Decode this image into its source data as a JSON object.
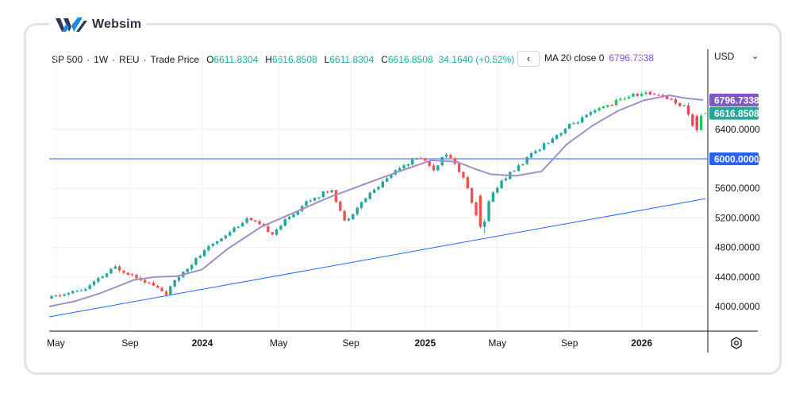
{
  "brand": {
    "name": "Websim"
  },
  "legend": {
    "symbol": "SP 500",
    "interval": "1W",
    "source": "REU",
    "price_type": "Trade Price",
    "o_key": "O",
    "o_val": "6611.8304",
    "h_key": "H",
    "h_val": "6616.8508",
    "l_key": "L",
    "l_val": "6611.8304",
    "c_key": "C",
    "c_val": "6616.8508",
    "change": "34.1640 (+0.52%)"
  },
  "indicator": {
    "label": "MA 20 close 0",
    "value": "6796.7338"
  },
  "controls": {
    "collapse": "‹",
    "currency": "USD"
  },
  "colors": {
    "up": "#26a69a",
    "up_bright": "#22c55e",
    "down": "#ef5350",
    "down_bright": "#e8435f",
    "ma": "#a28fc4",
    "trend": "#2962ff",
    "level": "#2962ff",
    "tag_ma": "#7e57c2",
    "tag_price": "#26a69a",
    "tag_level": "#2962ff"
  },
  "chart_data": {
    "type": "candlestick",
    "title": "SP 500 · 1W · REU",
    "ylim": [
      3720,
      7560
    ],
    "y_ticks": [
      4000,
      4400,
      4800,
      5200,
      5600,
      6000,
      6400
    ],
    "y_tick_labels": [
      "4000.0000",
      "4400.0000",
      "4800.0000",
      "5200.0000",
      "5600.0000",
      "6000.0000",
      "6400.0000"
    ],
    "x_ticks": [
      {
        "label": "May",
        "t": 1,
        "major": false
      },
      {
        "label": "Sep",
        "t": 18.5,
        "major": false
      },
      {
        "label": "2024",
        "t": 35.5,
        "major": true
      },
      {
        "label": "May",
        "t": 53.5,
        "major": false
      },
      {
        "label": "Sep",
        "t": 70.5,
        "major": false
      },
      {
        "label": "2025",
        "t": 88,
        "major": true
      },
      {
        "label": "May",
        "t": 105,
        "major": false
      },
      {
        "label": "Sep",
        "t": 122,
        "major": false
      },
      {
        "label": "2026",
        "t": 139,
        "major": true
      }
    ],
    "x_count": 155,
    "anchors": [
      [
        0,
        4120
      ],
      [
        8,
        4240
      ],
      [
        15,
        4530
      ],
      [
        21,
        4380
      ],
      [
        27,
        4180
      ],
      [
        31,
        4480
      ],
      [
        38,
        4850
      ],
      [
        46,
        5190
      ],
      [
        52,
        5000
      ],
      [
        60,
        5420
      ],
      [
        66,
        5590
      ],
      [
        69,
        5150
      ],
      [
        74,
        5470
      ],
      [
        82,
        5900
      ],
      [
        87,
        6020
      ],
      [
        90,
        5860
      ],
      [
        93,
        6080
      ],
      [
        97,
        5750
      ],
      [
        101,
        5050
      ],
      [
        103,
        5450
      ],
      [
        106,
        5700
      ],
      [
        110,
        5900
      ],
      [
        116,
        6200
      ],
      [
        122,
        6450
      ],
      [
        130,
        6700
      ],
      [
        136,
        6850
      ],
      [
        139,
        6880
      ],
      [
        143,
        6880
      ],
      [
        150,
        6680
      ],
      [
        152,
        6400
      ],
      [
        154,
        6616.85
      ]
    ],
    "ma_anchors": [
      [
        0,
        4000
      ],
      [
        6,
        4070
      ],
      [
        12,
        4180
      ],
      [
        20,
        4360
      ],
      [
        25,
        4400
      ],
      [
        30,
        4410
      ],
      [
        36,
        4500
      ],
      [
        42,
        4780
      ],
      [
        50,
        5080
      ],
      [
        58,
        5280
      ],
      [
        66,
        5480
      ],
      [
        74,
        5650
      ],
      [
        82,
        5820
      ],
      [
        90,
        5980
      ],
      [
        96,
        5960
      ],
      [
        100,
        5870
      ],
      [
        104,
        5790
      ],
      [
        110,
        5770
      ],
      [
        116,
        5830
      ],
      [
        122,
        6200
      ],
      [
        128,
        6450
      ],
      [
        134,
        6650
      ],
      [
        140,
        6790
      ],
      [
        146,
        6860
      ],
      [
        150,
        6820
      ],
      [
        154,
        6796.73
      ]
    ],
    "special_bars": [
      {
        "t": 101,
        "open": 5500,
        "high": 5520,
        "low": 5060,
        "close": 5080
      },
      {
        "t": 102,
        "open": 5080,
        "high": 5180,
        "low": 4990,
        "close": 5150
      },
      {
        "t": 150,
        "open": 6720,
        "high": 6760,
        "low": 6580,
        "close": 6600
      },
      {
        "t": 151,
        "open": 6600,
        "high": 6620,
        "low": 6430,
        "close": 6450
      },
      {
        "t": 152,
        "open": 6580,
        "high": 6600,
        "low": 6360,
        "close": 6390
      },
      {
        "t": 153,
        "open": 6390,
        "high": 6610,
        "low": 6380,
        "close": 6582
      },
      {
        "t": 154,
        "open": 6611.83,
        "high": 6616.85,
        "low": 6611.83,
        "close": 6616.85
      }
    ],
    "trend_line": {
      "p1": [
        0,
        3860
      ],
      "p2": [
        154,
        5460
      ]
    },
    "horizontal_level": 6000,
    "ma_value": 6796.7338,
    "last_price": 6616.8508,
    "price_tags": [
      {
        "value": 6796.7338,
        "label": "6796.7338",
        "kind": "ma"
      },
      {
        "value": 6616.8508,
        "label": "6616.8508",
        "kind": "price"
      },
      {
        "value": 6000,
        "label": "6000.0000",
        "kind": "level"
      }
    ]
  }
}
